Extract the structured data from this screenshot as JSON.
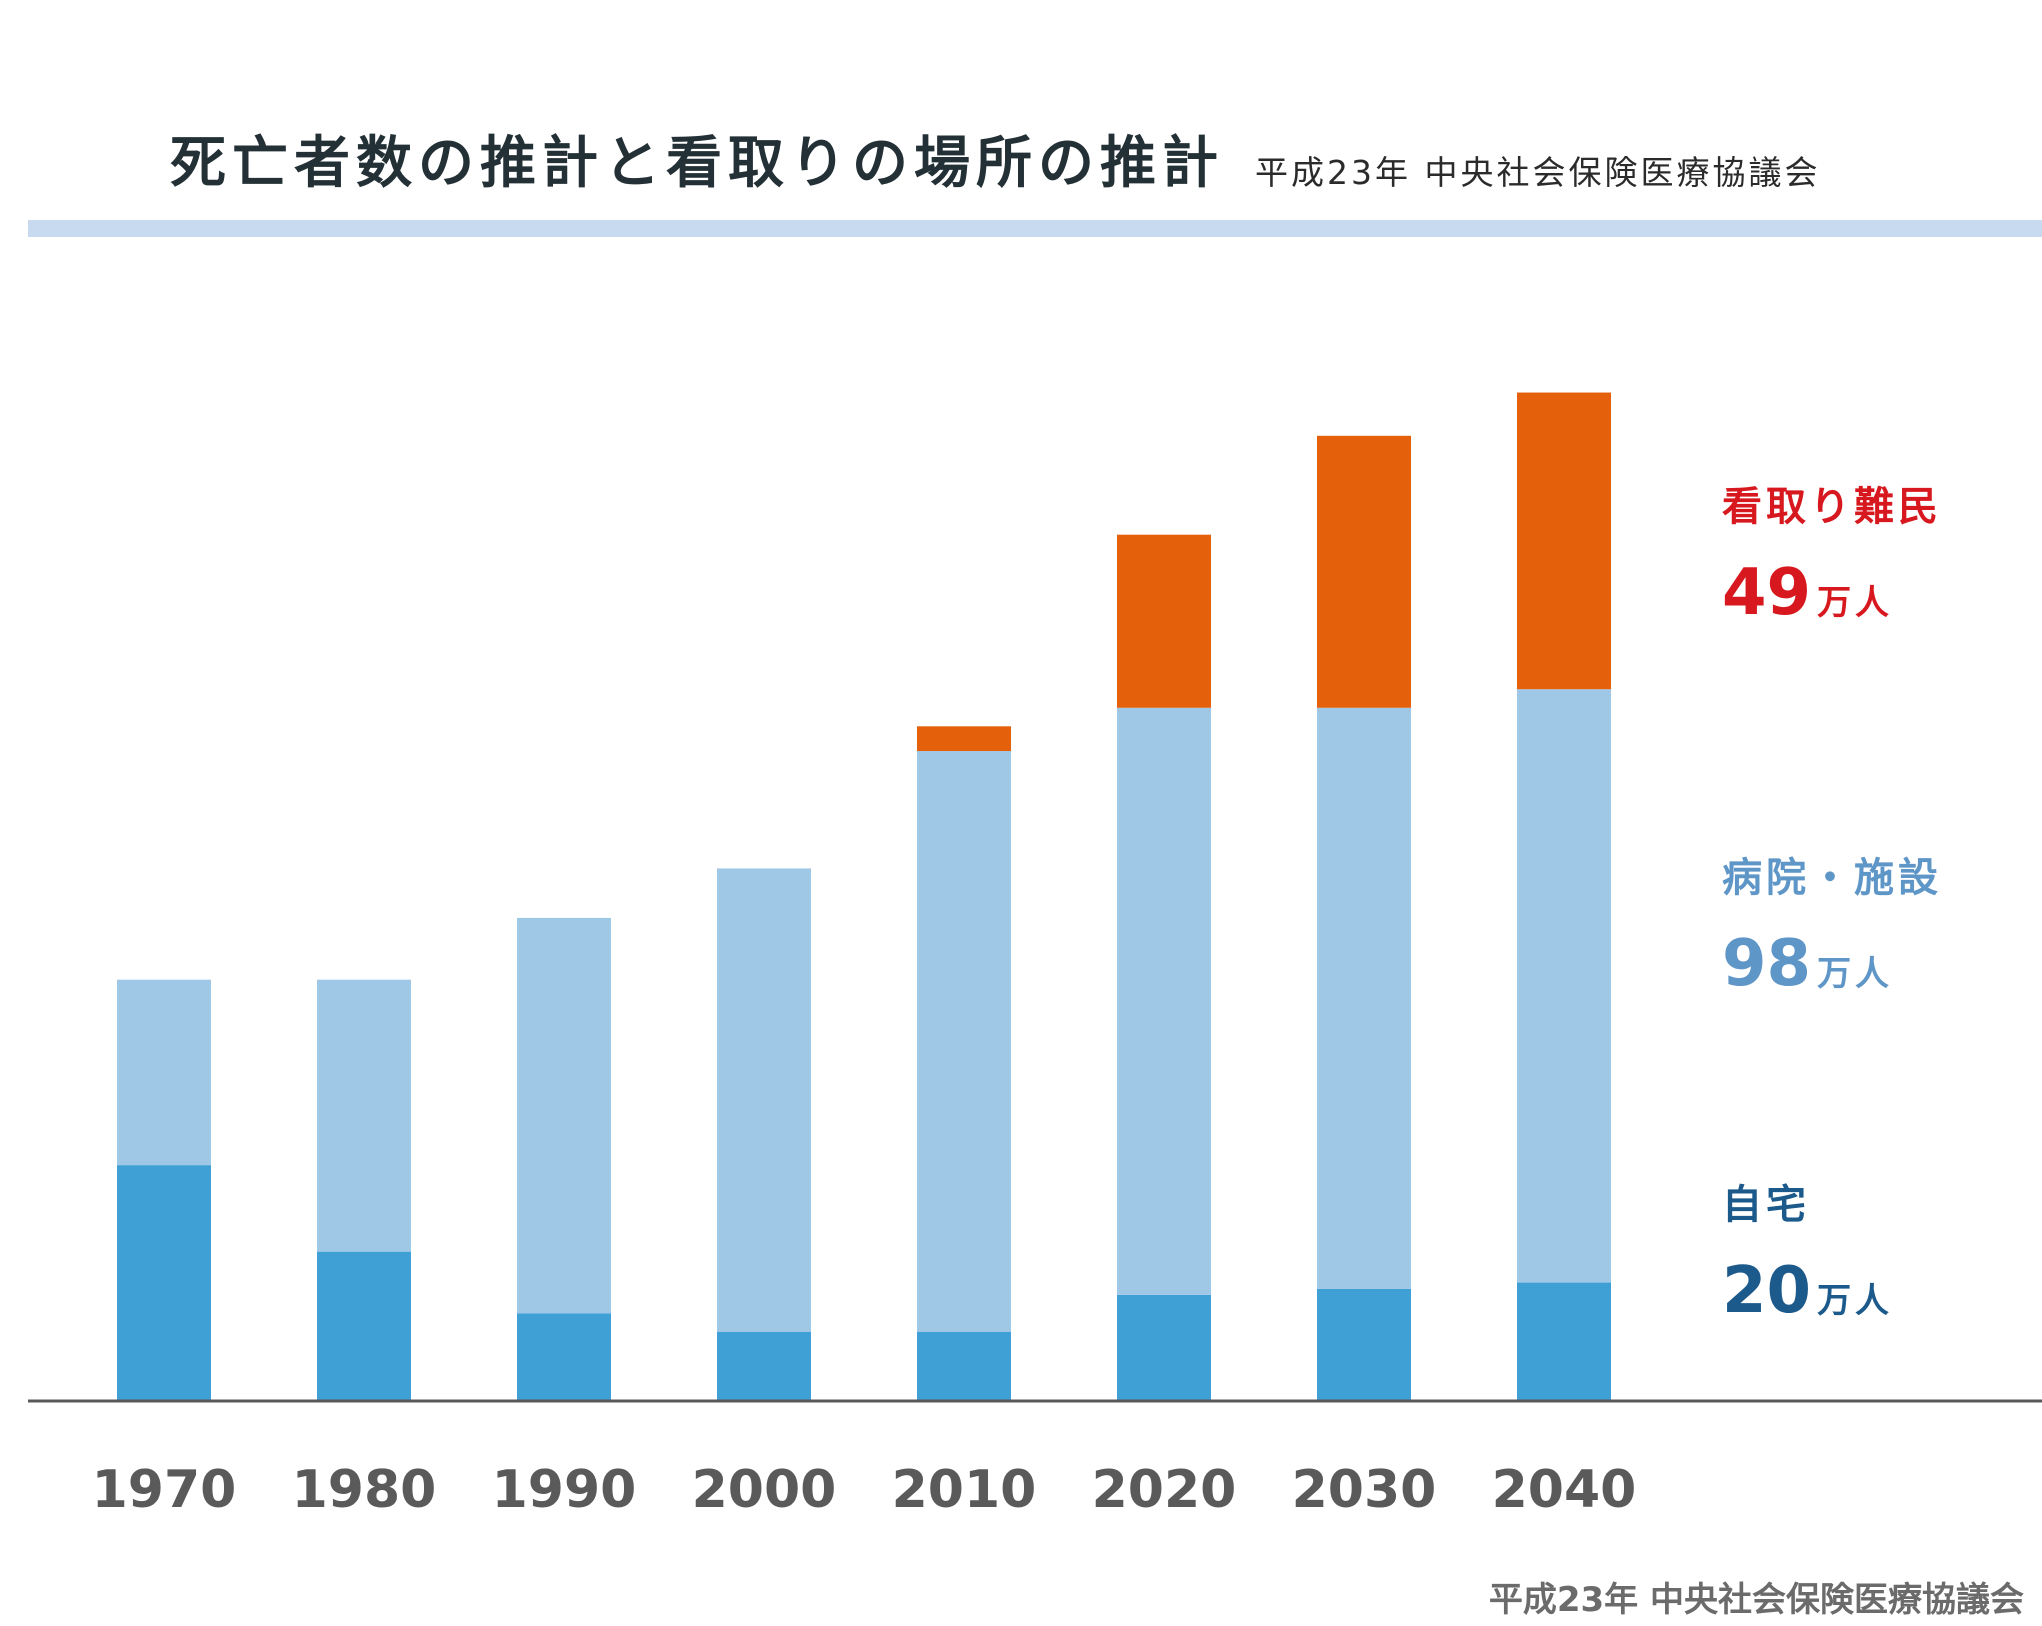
{
  "header": {
    "title": "死亡者数の推計と看取りの場所の推計",
    "subtitle": "平成23年 中央社会保険医療協議会"
  },
  "footer": {
    "source": "平成23年 中央社会保険医療協議会"
  },
  "colors": {
    "home": "#3ea0d5",
    "hospital": "#9fc8e6",
    "nowhere": "#e5600b",
    "band": "#c8daf0",
    "axis": "#595959"
  },
  "legend": [
    {
      "key": "nowhere",
      "name": "看取り難民",
      "number": "49",
      "unit": "万人",
      "color": "#d7191f"
    },
    {
      "key": "hospital",
      "name": "病院・施設",
      "number": "98",
      "unit": "万人",
      "color": "#5f96c8"
    },
    {
      "key": "home",
      "name": "自宅",
      "number": "20",
      "unit": "万人",
      "color": "#1d5a8c"
    }
  ],
  "chart_data": {
    "type": "bar",
    "stacked": true,
    "categories": [
      "1970",
      "1980",
      "1990",
      "2000",
      "2010",
      "2020",
      "2030",
      "2040"
    ],
    "ylim": [
      0,
      166
    ],
    "series": [
      {
        "key": "home",
        "name": "自宅",
        "values": [
          38,
          24,
          14,
          11,
          11,
          17,
          18,
          19
        ]
      },
      {
        "key": "hospital",
        "name": "病院・施設",
        "values": [
          30,
          44,
          64,
          75,
          94,
          95,
          94,
          96
        ]
      },
      {
        "key": "nowhere",
        "name": "看取り難民",
        "values": [
          0,
          0,
          0,
          0,
          4,
          28,
          44,
          48
        ]
      }
    ]
  }
}
